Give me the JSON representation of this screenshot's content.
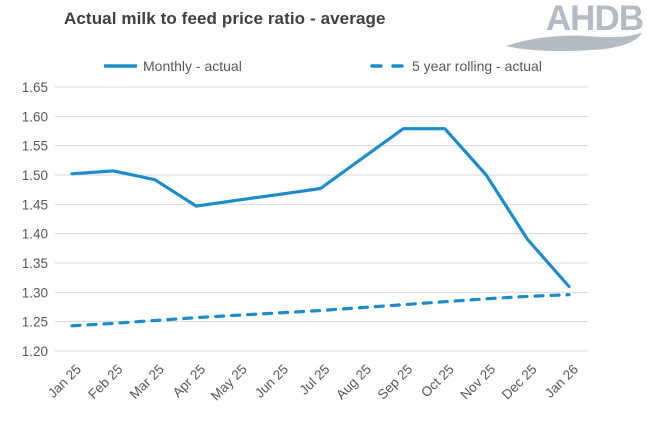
{
  "header": {
    "title": "Actual milk to feed price ratio - average",
    "logo_text": "AHDB"
  },
  "chart_data": {
    "type": "line",
    "title": "Actual milk to feed price ratio - average",
    "categories": [
      "Jan 25",
      "Feb 25",
      "Mar 25",
      "Apr 25",
      "May 25",
      "Jun 25",
      "Jul 25",
      "Aug 25",
      "Sep 25",
      "Oct 25",
      "Nov 25",
      "Dec 25",
      "Jan 26"
    ],
    "series": [
      {
        "name": "Monthly - actual",
        "style": "solid",
        "values": [
          1.502,
          1.507,
          1.492,
          1.447,
          1.457,
          1.467,
          1.477,
          1.528,
          1.579,
          1.579,
          1.5,
          1.39,
          1.31
        ]
      },
      {
        "name": "5 year rolling - actual",
        "style": "dashed",
        "values": [
          1.243,
          1.247,
          1.252,
          1.257,
          1.261,
          1.265,
          1.269,
          1.274,
          1.279,
          1.284,
          1.289,
          1.293,
          1.296
        ]
      }
    ],
    "xlabel": "",
    "ylabel": "",
    "ylim": [
      1.2,
      1.65
    ],
    "yticks": [
      "1.65",
      "1.60",
      "1.55",
      "1.50",
      "1.45",
      "1.40",
      "1.35",
      "1.30",
      "1.25",
      "1.20"
    ],
    "grid": "horizontal",
    "legend_position": "top",
    "accent_color": "#1e8cc8",
    "grid_color": "#d9d9d9",
    "axis_text_color": "#595959",
    "title_color": "#404040",
    "logo_color": "#b4bbc2"
  }
}
